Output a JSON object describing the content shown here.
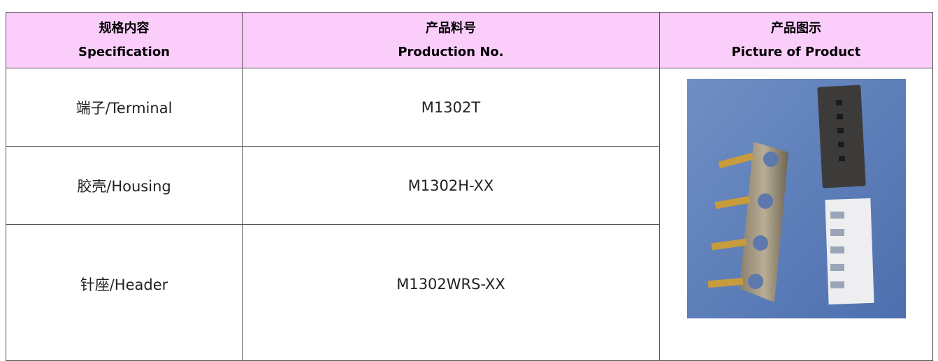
{
  "table": {
    "header": [
      {
        "zh": "规格内容",
        "en": "Specification"
      },
      {
        "zh": "产品料号",
        "en": "Production No."
      },
      {
        "zh": "产品图示",
        "en": "Picture of Product"
      }
    ],
    "rows": [
      [
        "端子/Terminal",
        "M1302T"
      ],
      [
        "胶壳/Housing",
        "M1302H-XX"
      ],
      [
        "针座/Header",
        "M1302WRS-XX"
      ]
    ]
  }
}
